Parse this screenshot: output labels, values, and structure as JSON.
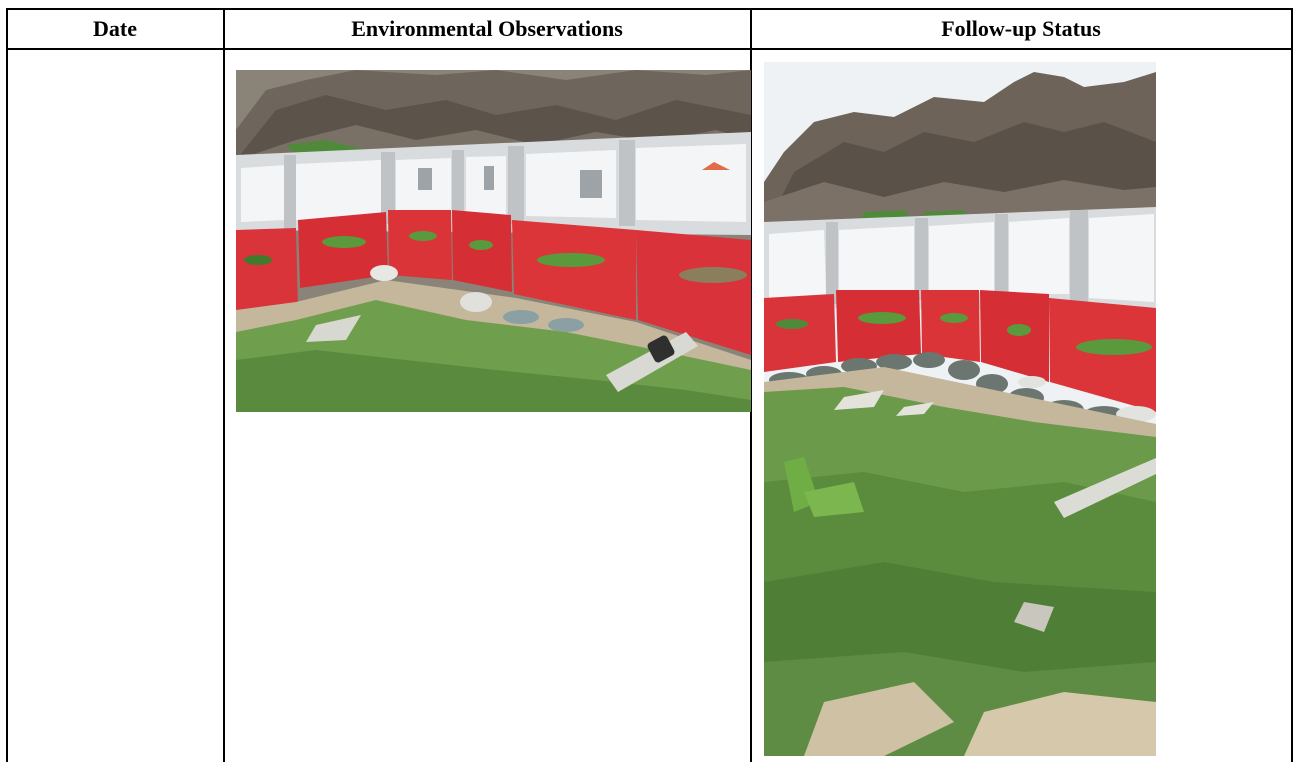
{
  "table": {
    "headers": {
      "date": "Date",
      "observations": "Environmental Observations",
      "follow_up": "Follow-up Status"
    }
  },
  "rows": [
    {
      "date": "",
      "observation_photo": "construction-site-barrier-photo",
      "follow_up_photo": "construction-site-barrier-followup-photo"
    }
  ]
}
